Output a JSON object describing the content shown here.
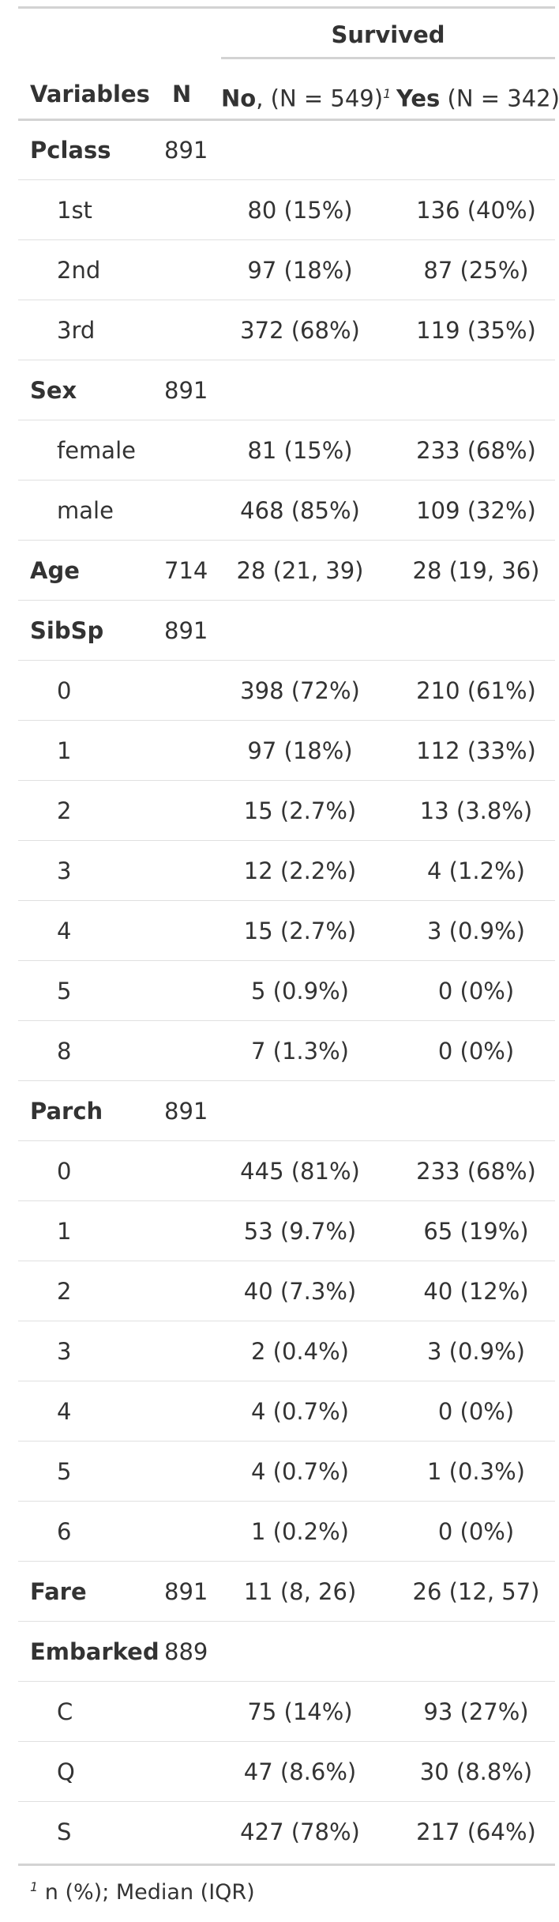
{
  "header": {
    "spanner": "Survived",
    "col_variables": "Variables",
    "col_n": "N",
    "col_no_bold": "No",
    "col_no_rest": ", (N = 549)",
    "col_yes_bold": "Yes",
    "col_yes_rest": " (N = 342)",
    "footnote_mark": "1"
  },
  "rows": [
    {
      "type": "var",
      "label": "Pclass",
      "n": "891",
      "no": "",
      "yes": ""
    },
    {
      "type": "level",
      "label": "1st",
      "n": "",
      "no": "80 (15%)",
      "yes": "136 (40%)"
    },
    {
      "type": "level",
      "label": "2nd",
      "n": "",
      "no": "97 (18%)",
      "yes": "87 (25%)"
    },
    {
      "type": "level",
      "label": "3rd",
      "n": "",
      "no": "372 (68%)",
      "yes": "119 (35%)"
    },
    {
      "type": "var",
      "label": "Sex",
      "n": "891",
      "no": "",
      "yes": ""
    },
    {
      "type": "level",
      "label": "female",
      "n": "",
      "no": "81 (15%)",
      "yes": "233 (68%)"
    },
    {
      "type": "level",
      "label": "male",
      "n": "",
      "no": "468 (85%)",
      "yes": "109 (32%)"
    },
    {
      "type": "var",
      "label": "Age",
      "n": "714",
      "no": "28 (21, 39)",
      "yes": "28 (19, 36)"
    },
    {
      "type": "var",
      "label": "SibSp",
      "n": "891",
      "no": "",
      "yes": ""
    },
    {
      "type": "level",
      "label": "0",
      "n": "",
      "no": "398 (72%)",
      "yes": "210 (61%)"
    },
    {
      "type": "level",
      "label": "1",
      "n": "",
      "no": "97 (18%)",
      "yes": "112 (33%)"
    },
    {
      "type": "level",
      "label": "2",
      "n": "",
      "no": "15 (2.7%)",
      "yes": "13 (3.8%)"
    },
    {
      "type": "level",
      "label": "3",
      "n": "",
      "no": "12 (2.2%)",
      "yes": "4 (1.2%)"
    },
    {
      "type": "level",
      "label": "4",
      "n": "",
      "no": "15 (2.7%)",
      "yes": "3 (0.9%)"
    },
    {
      "type": "level",
      "label": "5",
      "n": "",
      "no": "5 (0.9%)",
      "yes": "0 (0%)"
    },
    {
      "type": "level",
      "label": "8",
      "n": "",
      "no": "7 (1.3%)",
      "yes": "0 (0%)"
    },
    {
      "type": "var",
      "label": "Parch",
      "n": "891",
      "no": "",
      "yes": ""
    },
    {
      "type": "level",
      "label": "0",
      "n": "",
      "no": "445 (81%)",
      "yes": "233 (68%)"
    },
    {
      "type": "level",
      "label": "1",
      "n": "",
      "no": "53 (9.7%)",
      "yes": "65 (19%)"
    },
    {
      "type": "level",
      "label": "2",
      "n": "",
      "no": "40 (7.3%)",
      "yes": "40 (12%)"
    },
    {
      "type": "level",
      "label": "3",
      "n": "",
      "no": "2 (0.4%)",
      "yes": "3 (0.9%)"
    },
    {
      "type": "level",
      "label": "4",
      "n": "",
      "no": "4 (0.7%)",
      "yes": "0 (0%)"
    },
    {
      "type": "level",
      "label": "5",
      "n": "",
      "no": "4 (0.7%)",
      "yes": "1 (0.3%)"
    },
    {
      "type": "level",
      "label": "6",
      "n": "",
      "no": "1 (0.2%)",
      "yes": "0 (0%)"
    },
    {
      "type": "var",
      "label": "Fare",
      "n": "891",
      "no": "11 (8, 26)",
      "yes": "26 (12, 57)"
    },
    {
      "type": "var",
      "label": "Embarked",
      "n": "889",
      "no": "",
      "yes": ""
    },
    {
      "type": "level",
      "label": "C",
      "n": "",
      "no": "75 (14%)",
      "yes": "93 (27%)"
    },
    {
      "type": "level",
      "label": "Q",
      "n": "",
      "no": "47 (8.6%)",
      "yes": "30 (8.8%)"
    },
    {
      "type": "level",
      "label": "S",
      "n": "",
      "no": "427 (78%)",
      "yes": "217 (64%)"
    }
  ],
  "footnote": {
    "mark": "1",
    "text": "n (%); Median (IQR)"
  },
  "colors": {
    "text": "#333333",
    "rule_heavy": "#d3d3d3",
    "rule_light": "#e0e0e0"
  }
}
